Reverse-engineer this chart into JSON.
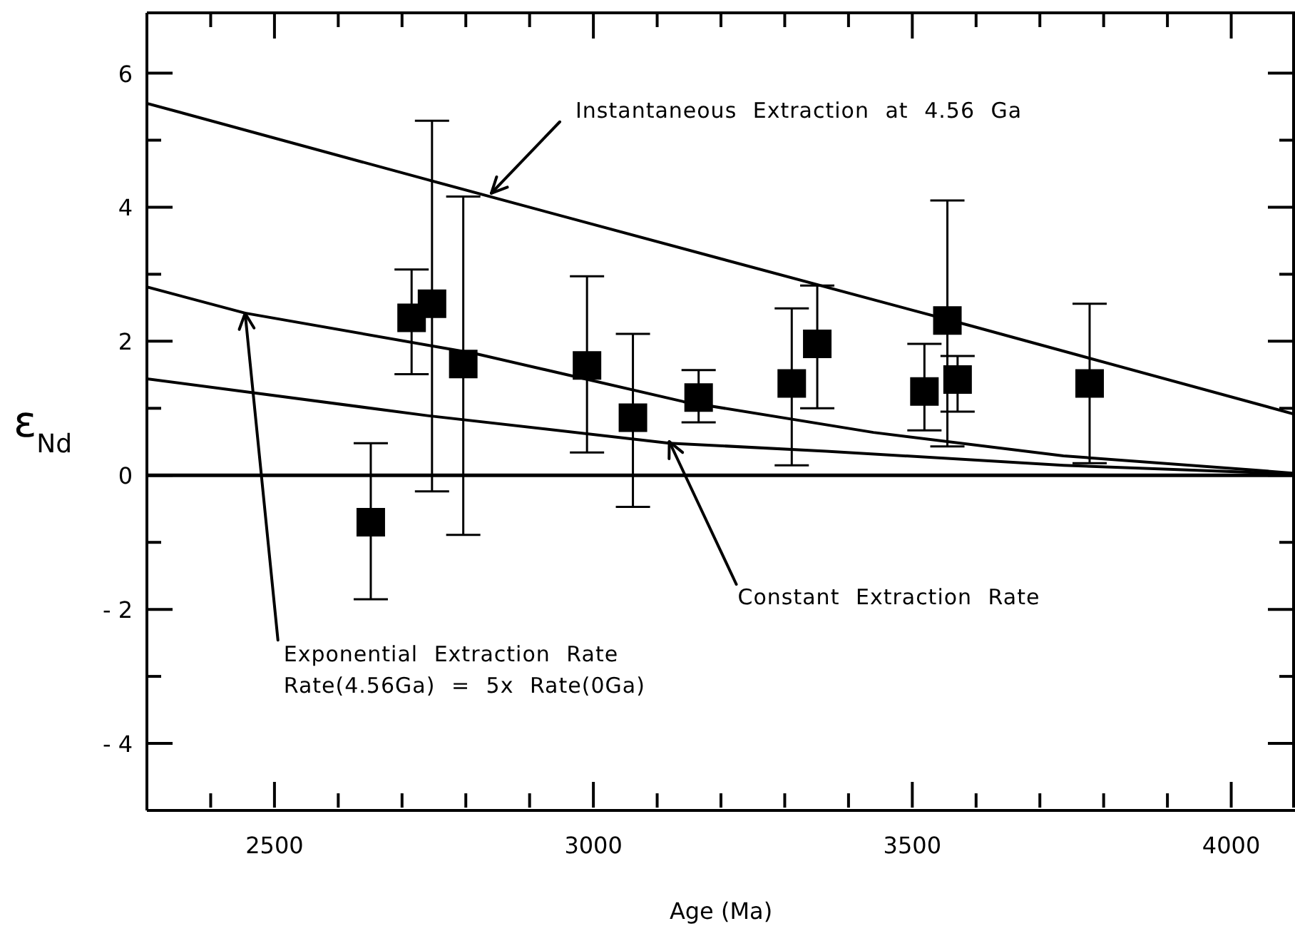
{
  "chart_data": {
    "type": "scatter",
    "xlabel": "Age (Ma)",
    "ylabel": "ε$_{Nd}$",
    "xlim": [
      2300,
      4100
    ],
    "ylim": [
      -5,
      6.9
    ],
    "xticks": [
      {
        "value": 2400,
        "label": null
      },
      2500,
      {
        "value": 2600,
        "label": null
      },
      {
        "value": 2700,
        "label": null
      },
      {
        "value": 2800,
        "label": null
      },
      {
        "value": 2900,
        "label": null
      },
      3000,
      {
        "value": 3100,
        "label": null
      },
      {
        "value": 3200,
        "label": null
      },
      {
        "value": 3300,
        "label": null
      },
      {
        "value": 3400,
        "label": null
      },
      3500,
      {
        "value": 3600,
        "label": null
      },
      {
        "value": 3700,
        "label": null
      },
      {
        "value": 3800,
        "label": null
      },
      {
        "value": 3900,
        "label": null
      },
      4000
    ],
    "yticks": [
      {
        "value": -5,
        "label": null
      },
      -4,
      {
        "value": -3,
        "label": null
      },
      -2,
      {
        "value": -1,
        "label": null
      },
      0,
      {
        "value": 1,
        "label": null
      },
      2,
      {
        "value": 3,
        "label": null
      },
      4,
      {
        "value": 5,
        "label": null
      },
      6
    ],
    "marker": "square",
    "grid": false,
    "legend": false,
    "ref_lines": [
      {
        "axis": "y",
        "value": 0,
        "color": "#000000"
      }
    ],
    "annotations": [
      {
        "text": "Instantaneous Extraction at 4.56 Ga",
        "x": 2840,
        "y": 4.2
      },
      {
        "text": "Exponential Extraction Rate\nRate(4.56Ga) = 5x Rate(0Ga)",
        "x": 2454,
        "y": 2.4
      },
      {
        "text": "Constant Extraction Rate",
        "x": 3119,
        "y": 0.48
      }
    ],
    "series": [
      {
        "type": "scatter",
        "color": "#000000",
        "x": [
          2651,
          2715,
          2747,
          2796,
          2990,
          3062,
          3165,
          3311,
          3351,
          3519,
          3555,
          3571,
          3778
        ],
        "values": [
          -0.7,
          2.35,
          2.56,
          1.66,
          1.64,
          0.86,
          1.16,
          1.37,
          1.96,
          1.25,
          2.31,
          1.43,
          1.37
        ],
        "errors": [
          [
            -1.85,
            0.48
          ],
          [
            1.51,
            3.07
          ],
          [
            -0.24,
            5.29
          ],
          [
            -0.89,
            4.16
          ],
          [
            0.34,
            2.97
          ],
          [
            -0.47,
            2.11
          ],
          [
            0.79,
            1.57
          ],
          [
            0.15,
            2.49
          ],
          [
            1.0,
            2.83
          ],
          [
            0.67,
            1.96
          ],
          [
            0.43,
            4.1
          ],
          [
            0.95,
            1.78
          ],
          [
            0.18,
            2.56
          ]
        ]
      },
      {
        "type": "line",
        "marker": "none",
        "color": "#000000",
        "x": [
          2300,
          2740,
          3200,
          3588,
          4100
        ],
        "values": [
          5.55,
          4.41,
          3.23,
          2.24,
          0.91
        ]
      },
      {
        "type": "line",
        "marker": "none",
        "color": "#000000",
        "x": [
          2300,
          2454,
          2813,
          3141,
          3439,
          3737,
          4034,
          4100
        ],
        "values": [
          2.81,
          2.42,
          1.82,
          1.1,
          0.64,
          0.29,
          0.08,
          0.03
        ]
      },
      {
        "type": "line",
        "marker": "none",
        "color": "#000000",
        "x": [
          2300,
          2740,
          3119,
          3365,
          3737,
          4100
        ],
        "values": [
          1.44,
          0.89,
          0.48,
          0.36,
          0.15,
          0.02
        ]
      }
    ]
  }
}
